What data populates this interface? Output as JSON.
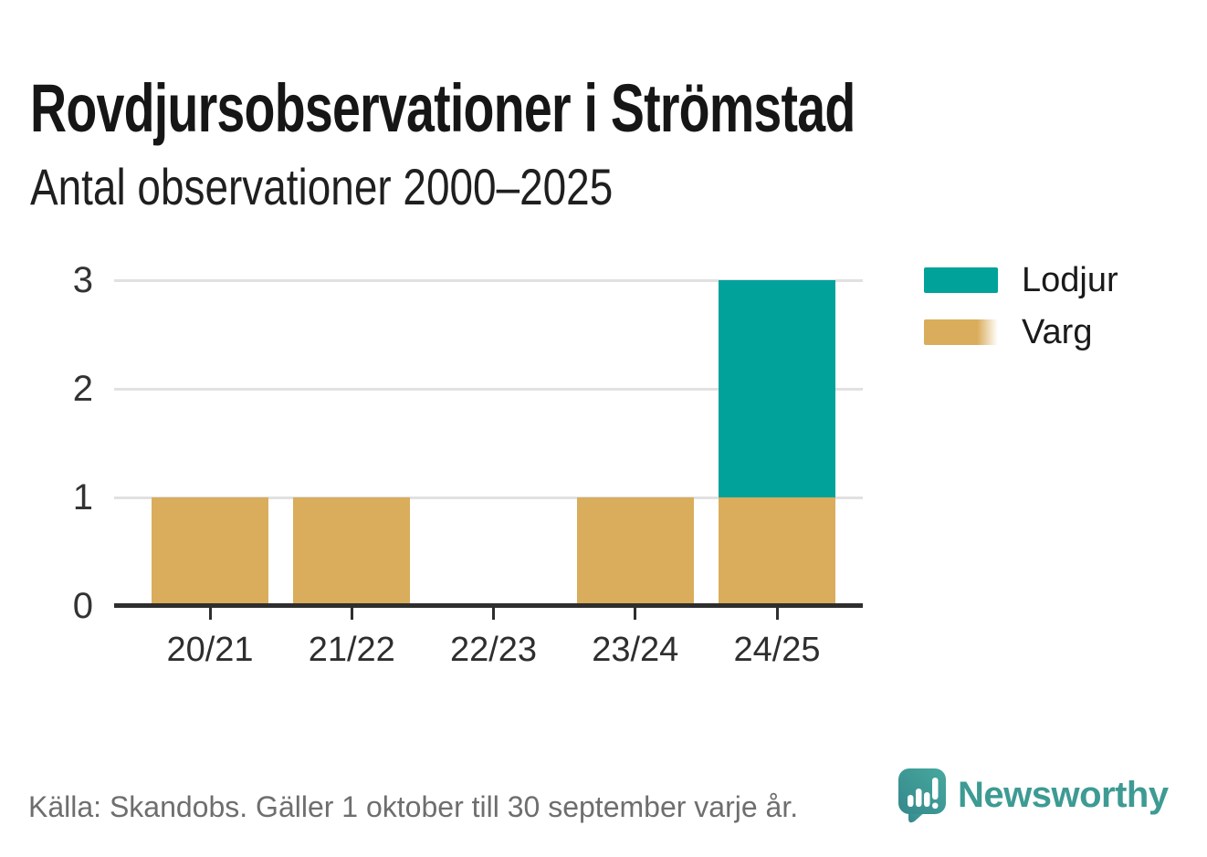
{
  "header": {
    "title": "Rovdjursobservationer i Strömstad",
    "subtitle": "Antal observationer 2000–2025"
  },
  "chart_data": {
    "type": "bar",
    "stacked": true,
    "categories": [
      "20/21",
      "21/22",
      "22/23",
      "23/24",
      "24/25"
    ],
    "series": [
      {
        "name": "Lodjur",
        "color": "#00A29A",
        "values": [
          0,
          0,
          0,
          0,
          2
        ]
      },
      {
        "name": "Varg",
        "color": "#D9AD5B",
        "values": [
          1,
          1,
          0,
          1,
          1
        ],
        "legend_fade": true
      }
    ],
    "stack_order_bottom_to_top": [
      "Varg",
      "Lodjur"
    ],
    "yticks": [
      0,
      1,
      2,
      3
    ],
    "ylim": [
      0,
      3
    ],
    "xlabel": "",
    "ylabel": "",
    "grid": true,
    "legend_position": "right-top"
  },
  "footer": {
    "source": "Källa: Skandobs. Gäller 1 oktober till 30 september varje år.",
    "brand": "Newsworthy"
  },
  "colors": {
    "lodjur": "#00A29A",
    "varg": "#D9AD5B",
    "axis": "#2E2E2E",
    "grid": "#E1E1E1",
    "title_text": "#161616",
    "label_text": "#333333",
    "source_text": "#6E6E6E",
    "brand_teal": "#3D9B93"
  }
}
